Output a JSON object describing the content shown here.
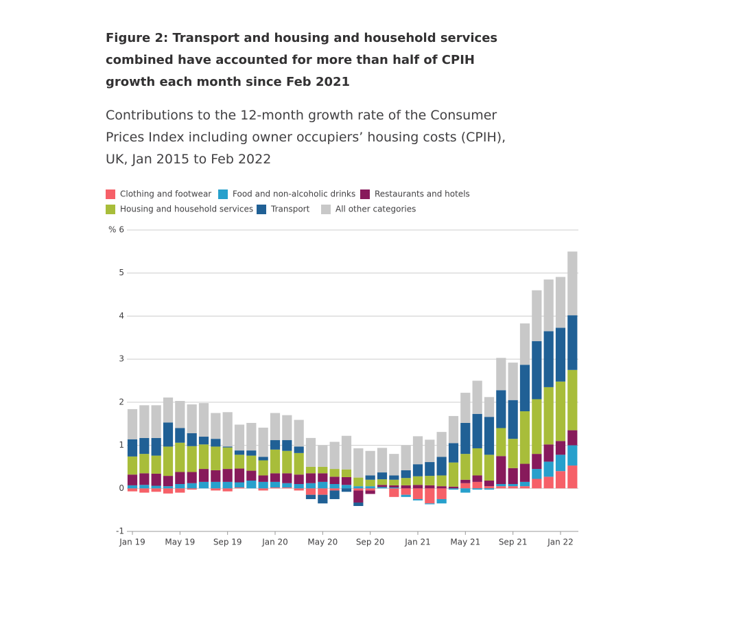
{
  "chart_data": {
    "type": "stacked-bar",
    "title": "Figure 2: Transport and housing and household services combined have accounted for more than half of CPIH growth each month since Feb 2021",
    "subtitle": "Contributions to the 12-month growth rate of the Consumer Prices Index including owner occupiers’ housing costs (CPIH), UK, Jan 2015 to Feb 2022",
    "y_label": "%",
    "categories": [
      "Jan 19",
      null,
      null,
      null,
      "May 19",
      null,
      null,
      null,
      "Sep 19",
      null,
      null,
      null,
      "Jan 20",
      null,
      null,
      null,
      "May 20",
      null,
      null,
      null,
      "Sep 20",
      null,
      null,
      null,
      "Jan 21",
      null,
      null,
      null,
      "May 21",
      null,
      null,
      null,
      "Sep 21",
      null,
      null,
      null,
      "Jan 22",
      null
    ],
    "series": [
      {
        "name": "Clothing and footwear",
        "color": "#f66068",
        "values": [
          -0.07,
          -0.1,
          -0.08,
          -0.12,
          -0.1,
          -0.03,
          0.0,
          -0.05,
          -0.07,
          0.02,
          0.0,
          -0.05,
          0.02,
          0.02,
          -0.05,
          -0.15,
          -0.15,
          -0.05,
          0.0,
          -0.05,
          -0.05,
          0.0,
          -0.2,
          -0.15,
          -0.25,
          -0.35,
          -0.25,
          0.0,
          0.12,
          0.15,
          0.05,
          0.05,
          0.05,
          0.05,
          0.22,
          0.27,
          0.4,
          0.53
        ]
      },
      {
        "name": "Food and non-alcoholic drinks",
        "color": "#27a0cc",
        "values": [
          0.07,
          0.08,
          0.06,
          0.05,
          0.1,
          0.12,
          0.15,
          0.15,
          0.15,
          0.12,
          0.18,
          0.15,
          0.13,
          0.1,
          0.1,
          0.12,
          0.15,
          0.1,
          0.08,
          0.05,
          0.05,
          0.03,
          0.02,
          -0.05,
          -0.03,
          -0.02,
          -0.1,
          -0.03,
          -0.1,
          -0.03,
          -0.03,
          0.05,
          0.05,
          0.1,
          0.23,
          0.35,
          0.38,
          0.47
        ]
      },
      {
        "name": "Restaurants and hotels",
        "color": "#871a5b",
        "values": [
          0.25,
          0.27,
          0.28,
          0.24,
          0.28,
          0.26,
          0.3,
          0.27,
          0.3,
          0.32,
          0.23,
          0.15,
          0.2,
          0.23,
          0.22,
          0.23,
          0.2,
          0.17,
          0.18,
          -0.28,
          -0.08,
          0.05,
          0.05,
          0.07,
          0.08,
          0.07,
          0.05,
          0.04,
          0.08,
          0.15,
          0.13,
          0.65,
          0.37,
          0.42,
          0.35,
          0.4,
          0.32,
          0.35
        ]
      },
      {
        "name": "Housing and household services",
        "color": "#a8bd3a",
        "values": [
          0.42,
          0.45,
          0.42,
          0.68,
          0.68,
          0.6,
          0.57,
          0.55,
          0.5,
          0.32,
          0.35,
          0.35,
          0.55,
          0.52,
          0.5,
          0.15,
          0.15,
          0.18,
          0.18,
          0.2,
          0.15,
          0.13,
          0.13,
          0.17,
          0.2,
          0.22,
          0.25,
          0.56,
          0.6,
          0.63,
          0.6,
          0.65,
          0.68,
          1.22,
          1.27,
          1.33,
          1.38,
          1.4
        ]
      },
      {
        "name": "Transport",
        "color": "#206095",
        "values": [
          0.4,
          0.37,
          0.41,
          0.56,
          0.34,
          0.3,
          0.18,
          0.18,
          0.02,
          0.1,
          0.12,
          0.08,
          0.22,
          0.25,
          0.15,
          -0.1,
          -0.2,
          -0.2,
          -0.08,
          -0.08,
          0.1,
          0.16,
          0.1,
          0.18,
          0.28,
          0.32,
          0.43,
          0.45,
          0.72,
          0.8,
          0.88,
          0.88,
          0.9,
          1.08,
          1.35,
          1.3,
          1.25,
          1.27
        ]
      },
      {
        "name": "All other categories",
        "color": "#c8c8c8",
        "values": [
          0.7,
          0.76,
          0.76,
          0.58,
          0.63,
          0.67,
          0.78,
          0.6,
          0.8,
          0.6,
          0.64,
          0.68,
          0.63,
          0.58,
          0.62,
          0.67,
          0.5,
          0.63,
          0.78,
          0.68,
          0.57,
          0.57,
          0.5,
          0.58,
          0.65,
          0.52,
          0.58,
          0.63,
          0.7,
          0.77,
          0.46,
          0.75,
          0.87,
          0.96,
          1.18,
          1.2,
          1.18,
          1.48
        ]
      }
    ],
    "ylim": [
      -1,
      6
    ],
    "yticks": [
      -1,
      0,
      1,
      2,
      3,
      4,
      5,
      6
    ],
    "grid": true
  }
}
